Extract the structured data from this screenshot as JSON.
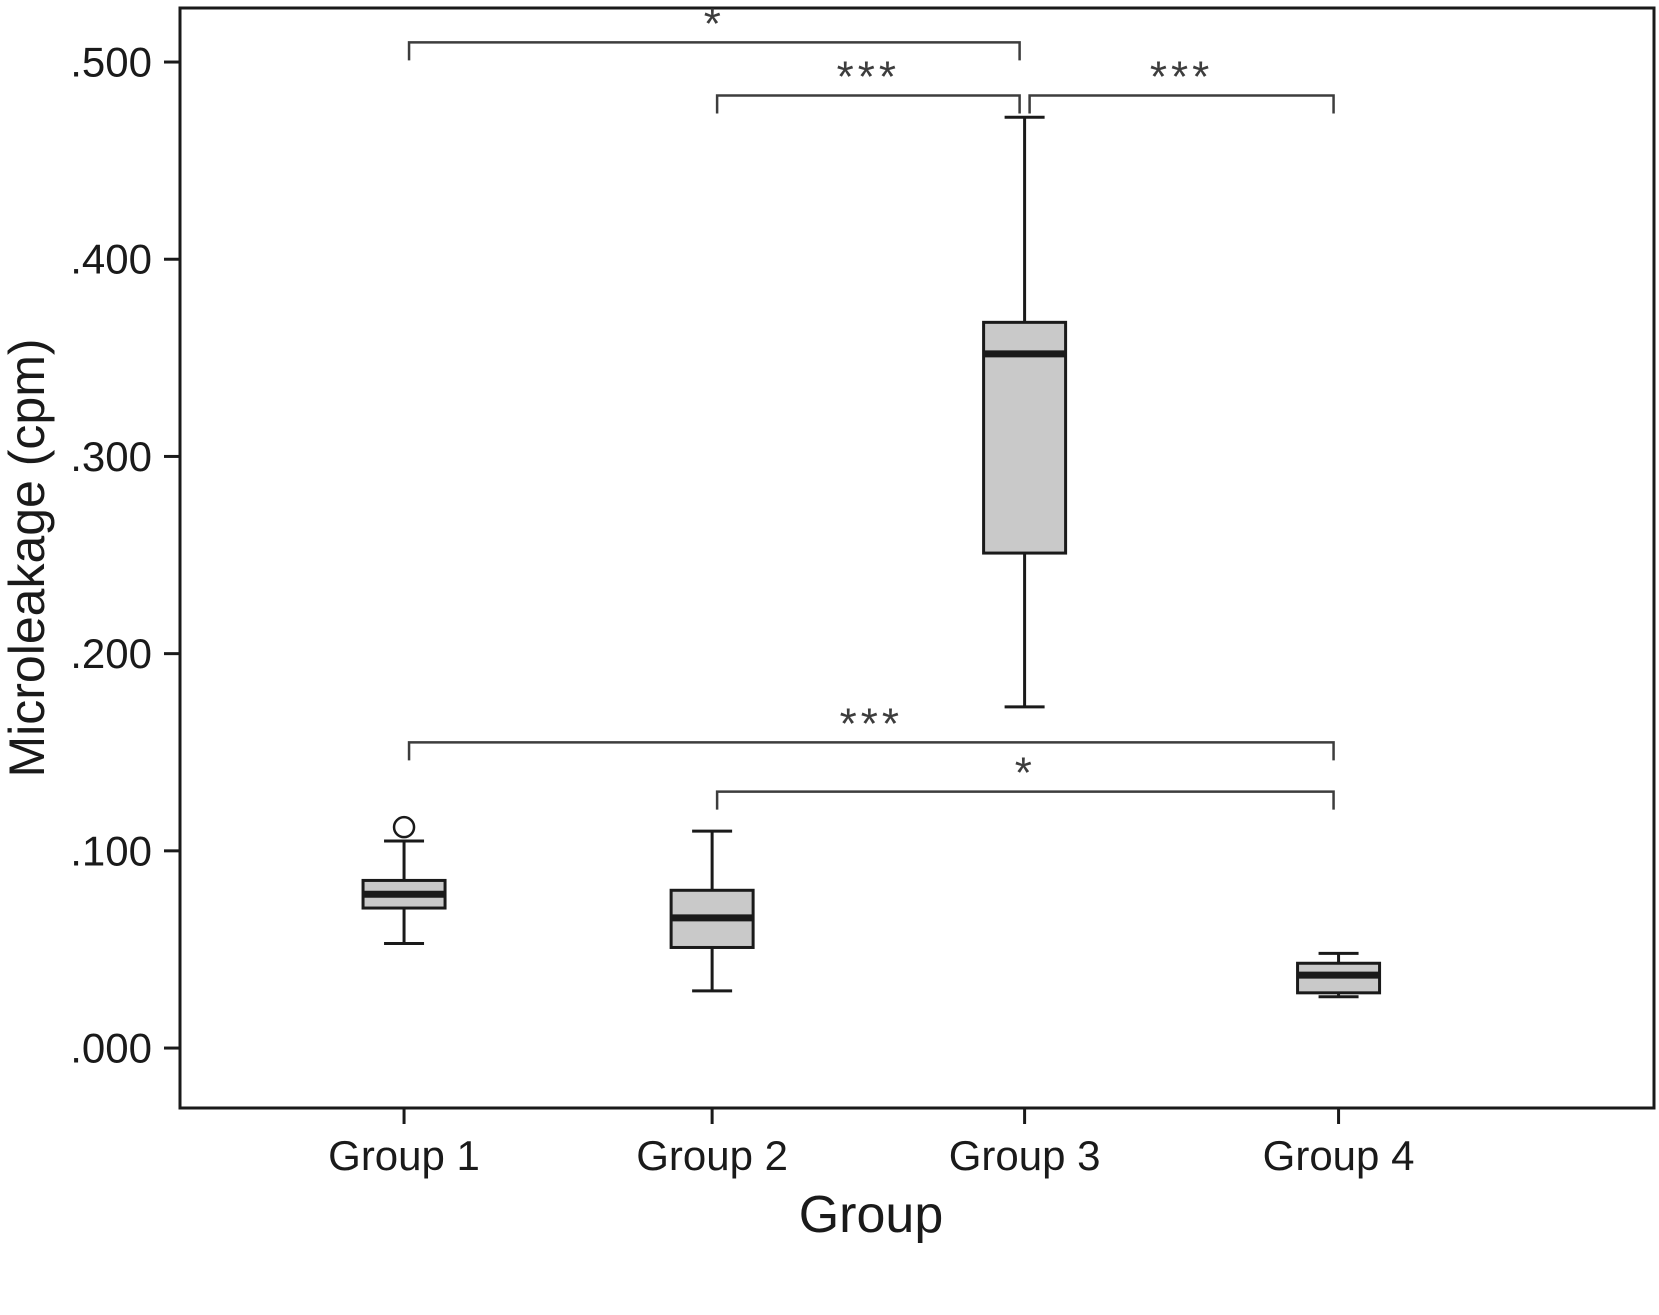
{
  "figure": {
    "background": "#ffffff"
  },
  "chart_data": {
    "type": "boxplot",
    "title": "",
    "xlabel": "Group",
    "ylabel": "Microleakage (cpm)",
    "categories": [
      "Group 1",
      "Group 2",
      "Group 3",
      "Group 4"
    ],
    "yticks": [
      0.0,
      0.1,
      0.2,
      0.3,
      0.4,
      0.5
    ],
    "ytick_labels": [
      ".000",
      ".100",
      ".200",
      ".300",
      ".400",
      ".500"
    ],
    "ylim": [
      -0.0304,
      0.5274
    ],
    "grid": false,
    "legend": "none",
    "box_fill": "#c9c9c9",
    "box_stroke": "#1a1a1a",
    "series": [
      {
        "group": "Group 1",
        "whisker_low": 0.053,
        "q1": 0.071,
        "median": 0.078,
        "q3": 0.085,
        "whisker_high": 0.105,
        "outliers": [
          0.112
        ]
      },
      {
        "group": "Group 2",
        "whisker_low": 0.029,
        "q1": 0.051,
        "median": 0.066,
        "q3": 0.08,
        "whisker_high": 0.11,
        "outliers": []
      },
      {
        "group": "Group 3",
        "whisker_low": 0.173,
        "q1": 0.251,
        "median": 0.352,
        "q3": 0.368,
        "whisker_high": 0.472,
        "outliers": []
      },
      {
        "group": "Group 4",
        "whisker_low": 0.026,
        "q1": 0.028,
        "median": 0.037,
        "q3": 0.043,
        "whisker_high": 0.048,
        "outliers": []
      }
    ],
    "significance_brackets": [
      {
        "from": "Group 1",
        "to": "Group 3",
        "label": "*",
        "y": 0.51
      },
      {
        "from": "Group 2",
        "to": "Group 3",
        "label": "***",
        "y": 0.483
      },
      {
        "from": "Group 3",
        "to": "Group 4",
        "label": "***",
        "y": 0.483
      },
      {
        "from": "Group 1",
        "to": "Group 4",
        "label": "***",
        "y": 0.155
      },
      {
        "from": "Group 2",
        "to": "Group 4",
        "label": "*",
        "y": 0.13
      }
    ]
  }
}
